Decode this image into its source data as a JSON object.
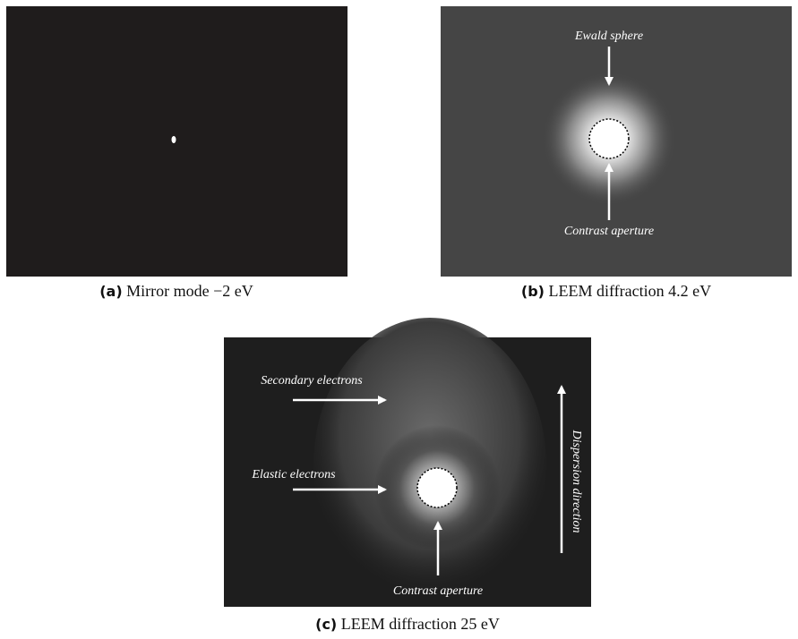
{
  "figures": [
    {
      "label": "(a)",
      "caption": "Mirror mode −2 eV",
      "annotations": []
    },
    {
      "label": "(b)",
      "caption": "LEEM diffraction 4.2 eV",
      "annotations": [
        "Ewald sphere",
        "Contrast aperture"
      ]
    },
    {
      "label": "(c)",
      "caption": "LEEM diffraction 25 eV",
      "annotations": [
        "Secondary electrons",
        "Elastic electrons",
        "Contrast aperture",
        "Dispersion direction"
      ]
    }
  ]
}
